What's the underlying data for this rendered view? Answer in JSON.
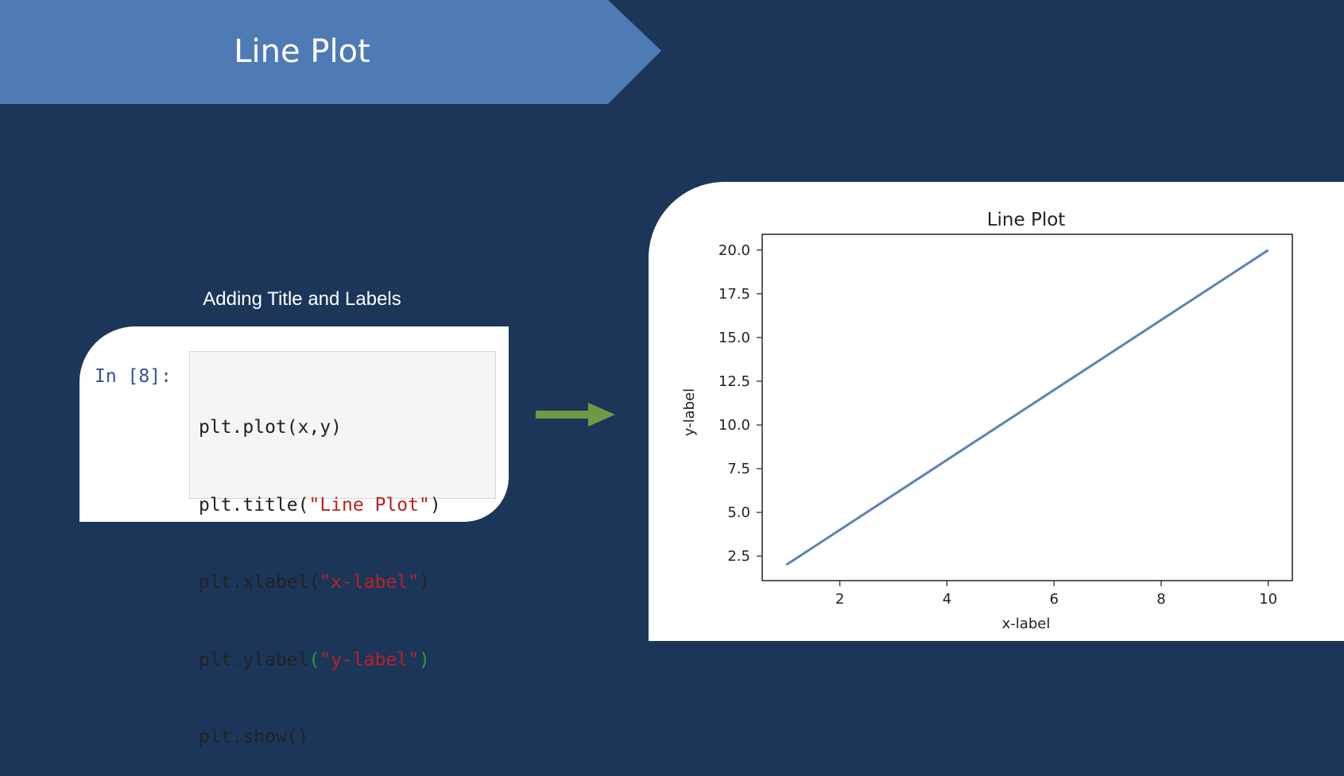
{
  "slide": {
    "title": "Line Plot",
    "subtitle": "Adding Title and Labels"
  },
  "notebook": {
    "prompt": "In [8]:",
    "code": {
      "line1": "plt.plot(x,y)",
      "line2_prefix": "plt.title(",
      "line2_string": "\"Line Plot\"",
      "line2_suffix": ")",
      "line3_prefix": "plt.xlabel(",
      "line3_string": "\"x-label\"",
      "line3_suffix": ")",
      "line4_prefix": "plt.ylabel",
      "line4_open": "(",
      "line4_string": "\"y-label\"",
      "line4_close": ")",
      "line5": "plt.show()"
    }
  },
  "colors": {
    "background": "#1c365a",
    "banner": "#4f7bb5",
    "arrow": "#6f9a43",
    "line": "#5b84b4",
    "string": "#ba2121",
    "matching_paren": "#21a038"
  },
  "chart_data": {
    "type": "line",
    "title": "Line Plot",
    "xlabel": "x-label",
    "ylabel": "y-label",
    "x": [
      1,
      10
    ],
    "y": [
      2,
      20
    ],
    "xlim": [
      0.55,
      10.45
    ],
    "ylim": [
      1.1,
      20.9
    ],
    "xticks": [
      2,
      4,
      6,
      8,
      10
    ],
    "xtick_labels": [
      "2",
      "4",
      "6",
      "8",
      "10"
    ],
    "yticks": [
      2.5,
      5.0,
      7.5,
      10.0,
      12.5,
      15.0,
      17.5,
      20.0
    ],
    "ytick_labels": [
      "2.5",
      "5.0",
      "7.5",
      "10.0",
      "12.5",
      "15.0",
      "17.5",
      "20.0"
    ],
    "grid": false,
    "series": [
      {
        "x": [
          1,
          10
        ],
        "y": [
          2,
          20
        ]
      }
    ]
  }
}
